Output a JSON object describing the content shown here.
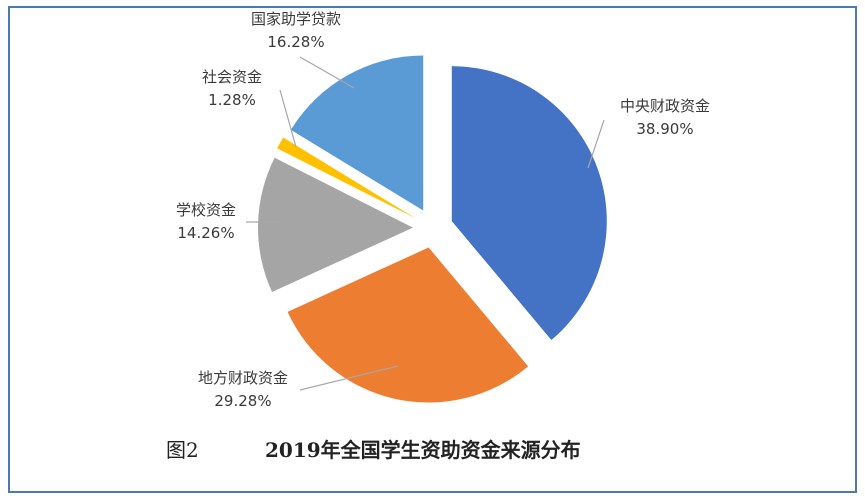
{
  "chart_data": {
    "type": "pie",
    "exploded": true,
    "start": "12 o'clock, clockwise",
    "slices": [
      {
        "label": "中央财政资金",
        "value": 38.9,
        "value_label": "38.90%",
        "color": "#4472c4"
      },
      {
        "label": "地方财政资金",
        "value": 29.28,
        "value_label": "29.28%",
        "color": "#ed7d31"
      },
      {
        "label": "学校资金",
        "value": 14.26,
        "value_label": "14.26%",
        "color": "#a5a5a5"
      },
      {
        "label": "社会资金",
        "value": 1.28,
        "value_label": "1.28%",
        "color": "#ffc000"
      },
      {
        "label": "国家助学贷款",
        "value": 16.28,
        "value_label": "16.28%",
        "color": "#5b9bd5"
      }
    ]
  },
  "caption": {
    "number": "图2",
    "title": "2019年全国学生资助资金来源分布"
  }
}
